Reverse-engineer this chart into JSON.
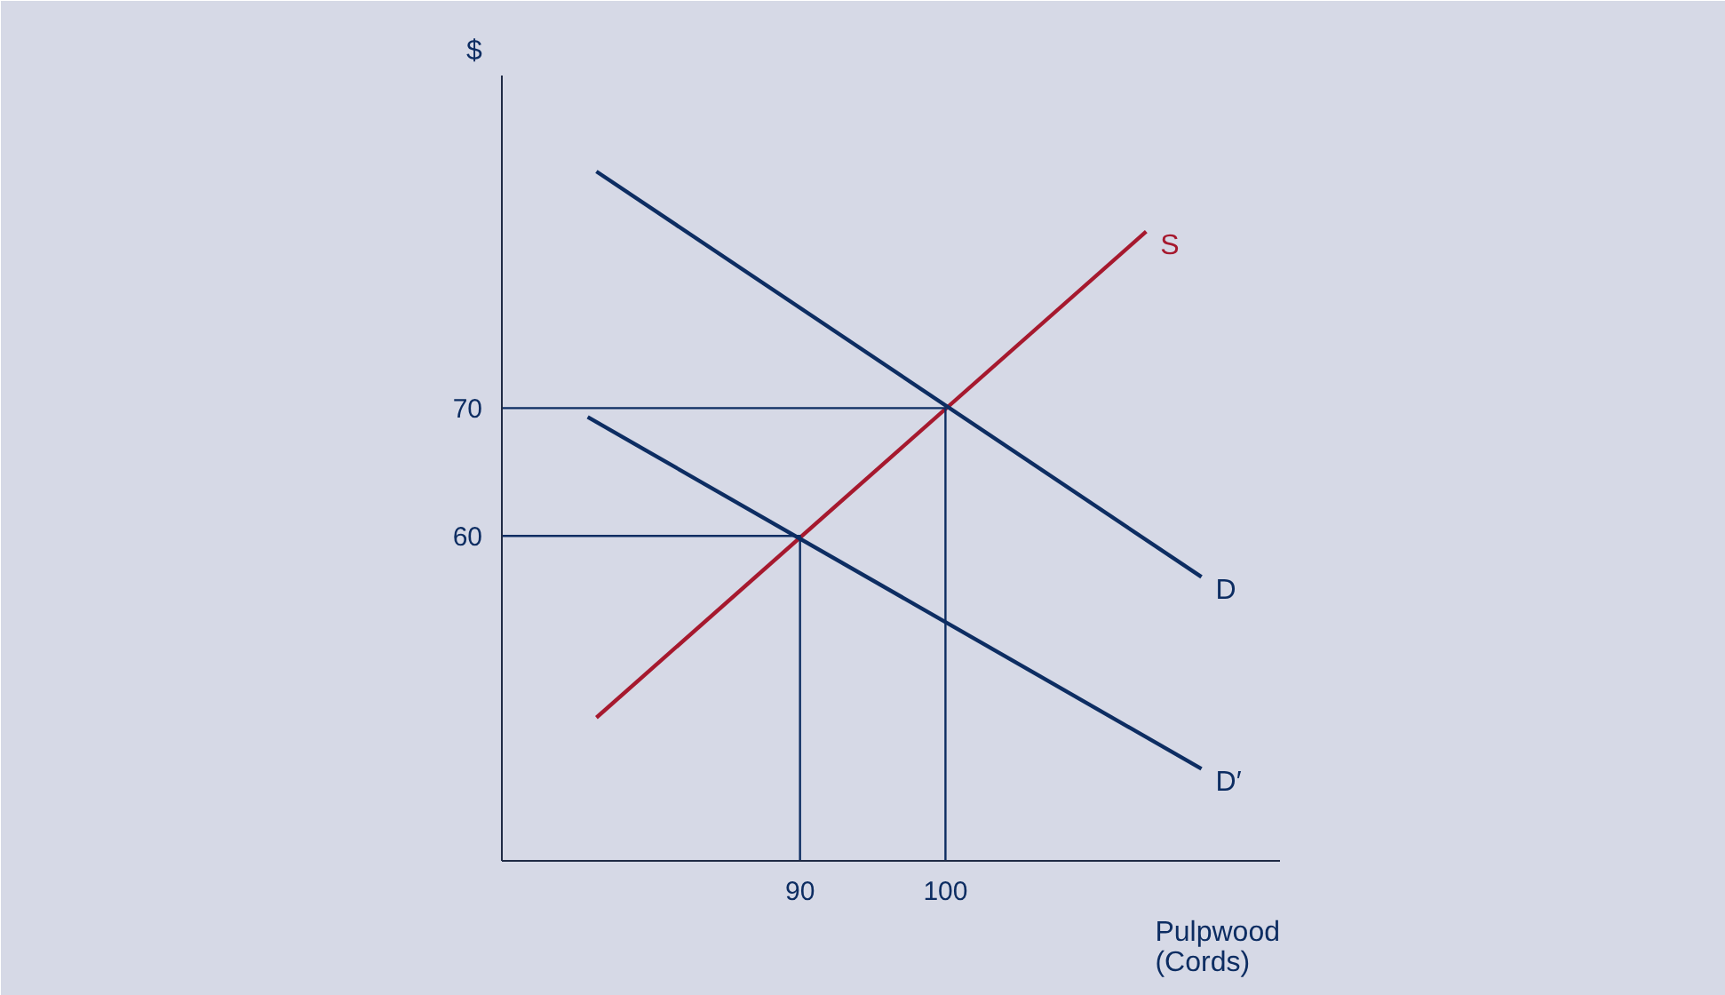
{
  "chart_data": {
    "type": "line",
    "xlabel": "Pulpwood\n(Cords)",
    "ylabel": "$",
    "xlim": [
      69.5,
      123
    ],
    "ylim": [
      34.6,
      96
    ],
    "xticks": [
      90,
      100
    ],
    "yticks": [
      60,
      70
    ],
    "grid": false,
    "marker": "none",
    "line_style": "solid",
    "series": [
      {
        "name": "S",
        "color": "#a6192e",
        "x": [
          76.0,
          113.8
        ],
        "values": [
          45.8,
          83.8
        ]
      },
      {
        "name": "D",
        "color": "#0d2d62",
        "x": [
          76.0,
          117.6
        ],
        "values": [
          88.5,
          56.8
        ]
      },
      {
        "name": "D′",
        "color": "#0d2d62",
        "x": [
          75.4,
          117.6
        ],
        "values": [
          69.3,
          41.8
        ]
      },
      {
        "color": "#0d2d62",
        "x": [
          69.5,
          90,
          90
        ],
        "values": [
          60,
          60,
          34.6
        ]
      },
      {
        "color": "#0d2d62",
        "x": [
          69.5,
          100,
          100
        ],
        "values": [
          70,
          70,
          34.6
        ]
      }
    ]
  }
}
